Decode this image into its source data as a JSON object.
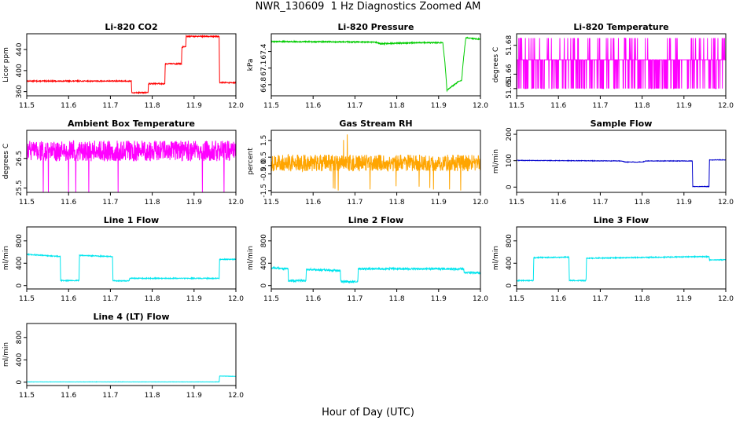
{
  "page": {
    "title": "NWR_130609  1 Hz Diagnostics Zoomed AM",
    "x_caption": "Hour of Day (UTC)"
  },
  "chart_data": [
    {
      "type": "line",
      "title": "Li-820 CO2",
      "ylabel": "Licor ppm",
      "color": "#ff0000",
      "xlim": [
        11.5,
        12.0
      ],
      "ylim": [
        352,
        470
      ],
      "xticks": [
        "11.5",
        "11.6",
        "11.7",
        "11.8",
        "11.9",
        "12.0"
      ],
      "yticks": [
        [
          360,
          "360"
        ],
        [
          400,
          "400"
        ],
        [
          440,
          "440"
        ]
      ],
      "noise": 1,
      "series": [
        {
          "x": [
            11.5,
            11.75,
            11.751,
            11.79,
            11.791,
            11.83,
            11.831,
            11.87,
            11.871,
            11.88,
            11.881,
            11.96,
            11.961,
            12.0
          ],
          "y": [
            380,
            380,
            358,
            358,
            375,
            375,
            413,
            413,
            445,
            445,
            465,
            465,
            377,
            377
          ]
        }
      ]
    },
    {
      "type": "line",
      "title": "Li-820 Pressure",
      "ylabel": "kPa",
      "color": "#00cc00",
      "xlim": [
        11.5,
        12.0
      ],
      "ylim": [
        66.6,
        67.72
      ],
      "xticks": [
        "11.5",
        "11.6",
        "11.7",
        "11.8",
        "11.9",
        "12.0"
      ],
      "yticks": [
        [
          66.8,
          "66.8"
        ],
        [
          67.1,
          "67.1"
        ],
        [
          67.4,
          "67.4"
        ]
      ],
      "noise": 0.01,
      "series": [
        {
          "x": [
            11.5,
            11.75,
            11.76,
            11.85,
            11.91,
            11.915,
            11.92,
            11.95,
            11.955,
            11.96,
            11.965,
            12.0
          ],
          "y": [
            67.58,
            67.57,
            67.54,
            67.56,
            67.56,
            67.2,
            66.7,
            66.87,
            66.88,
            67.3,
            67.65,
            67.62
          ]
        }
      ]
    },
    {
      "type": "line",
      "title": "Li-820 Temperature",
      "ylabel": "degrees C",
      "color": "#ff00ff",
      "style": "binary",
      "xlim": [
        11.5,
        12.0
      ],
      "ylim": [
        51.645,
        51.688
      ],
      "xticks": [
        "11.5",
        "11.6",
        "11.7",
        "11.8",
        "11.9",
        "12.0"
      ],
      "yticks": [
        [
          51.65,
          "51.65"
        ],
        [
          51.66,
          "51.66"
        ],
        [
          51.68,
          "51.68"
        ]
      ],
      "levels": [
        51.65,
        51.67,
        51.685
      ],
      "series": [
        {
          "x": [
            11.5,
            12.0
          ],
          "y": [
            51.67,
            51.67
          ]
        }
      ]
    },
    {
      "type": "line",
      "title": "Ambient Box Temperature",
      "ylabel": "degrees C",
      "color": "#ff00ff",
      "style": "noisy",
      "xlim": [
        11.5,
        12.0
      ],
      "ylim": [
        25.35,
        27.45
      ],
      "xticks": [
        "11.5",
        "11.6",
        "11.7",
        "11.8",
        "11.9",
        "12.0"
      ],
      "yticks": [
        [
          25.5,
          "25.5"
        ],
        [
          26.5,
          "26.5"
        ]
      ],
      "noise": 0.35,
      "spikes": [
        25.5,
        27.35
      ],
      "series": [
        {
          "x": [
            11.5,
            12.0
          ],
          "y": [
            26.75,
            26.75
          ]
        }
      ]
    },
    {
      "type": "line",
      "title": "Gas Stream RH",
      "ylabel": "percent",
      "color": "#ffa500",
      "style": "noisy",
      "xlim": [
        11.5,
        12.0
      ],
      "ylim": [
        -1.6,
        2.1
      ],
      "xticks": [
        "11.5",
        "11.6",
        "11.7",
        "11.8",
        "11.9",
        "12.0"
      ],
      "yticks": [
        [
          -1.5,
          "-1.5"
        ],
        [
          -0.5,
          "-0.5"
        ],
        [
          0,
          "0.0"
        ],
        [
          0.5,
          "0.5"
        ],
        [
          1.5,
          "1.5"
        ]
      ],
      "noise": 0.5,
      "spikes": [
        -1.5,
        1.9
      ],
      "series": [
        {
          "x": [
            11.5,
            12.0
          ],
          "y": [
            0.15,
            0.15
          ]
        }
      ]
    },
    {
      "type": "line",
      "title": "Sample Flow",
      "ylabel": "ml/min",
      "color": "#0000cc",
      "xlim": [
        11.5,
        12.0
      ],
      "ylim": [
        -20,
        215
      ],
      "xticks": [
        "11.5",
        "11.6",
        "11.7",
        "11.8",
        "11.9",
        "12.0"
      ],
      "yticks": [
        [
          0,
          "0"
        ],
        [
          100,
          "100"
        ],
        [
          200,
          "200"
        ]
      ],
      "noise": 1,
      "series": [
        {
          "x": [
            11.5,
            11.75,
            11.76,
            11.8,
            11.81,
            11.92,
            11.921,
            11.96,
            11.961,
            12.0
          ],
          "y": [
            101,
            99,
            95,
            95,
            99,
            99,
            2,
            2,
            103,
            103
          ]
        }
      ]
    },
    {
      "type": "line",
      "title": "Line 1 Flow",
      "ylabel": "ml/min",
      "color": "#00e5ee",
      "xlim": [
        11.5,
        12.0
      ],
      "ylim": [
        -60,
        1050
      ],
      "xticks": [
        "11.5",
        "11.6",
        "11.7",
        "11.8",
        "11.9",
        "12.0"
      ],
      "yticks": [
        [
          0,
          "0"
        ],
        [
          400,
          "400"
        ],
        [
          800,
          "800"
        ]
      ],
      "noise": 8,
      "series": [
        {
          "x": [
            11.5,
            11.54,
            11.58,
            11.581,
            11.625,
            11.626,
            11.705,
            11.706,
            11.745,
            11.746,
            11.96,
            11.961,
            12.0
          ],
          "y": [
            560,
            540,
            520,
            90,
            90,
            540,
            520,
            85,
            85,
            130,
            130,
            470,
            470
          ]
        }
      ]
    },
    {
      "type": "line",
      "title": "Line 2 Flow",
      "ylabel": "ml/min",
      "color": "#00e5ee",
      "xlim": [
        11.5,
        12.0
      ],
      "ylim": [
        -60,
        1050
      ],
      "xticks": [
        "11.5",
        "11.6",
        "11.7",
        "11.8",
        "11.9",
        "12.0"
      ],
      "yticks": [
        [
          0,
          "0"
        ],
        [
          400,
          "400"
        ],
        [
          800,
          "800"
        ]
      ],
      "noise": 18,
      "series": [
        {
          "x": [
            11.5,
            11.54,
            11.541,
            11.583,
            11.584,
            11.665,
            11.666,
            11.707,
            11.708,
            11.96,
            11.961,
            12.0
          ],
          "y": [
            320,
            300,
            90,
            90,
            290,
            270,
            70,
            70,
            300,
            300,
            230,
            230
          ]
        }
      ]
    },
    {
      "type": "line",
      "title": "Line 3 Flow",
      "ylabel": "ml/min",
      "color": "#00e5ee",
      "xlim": [
        11.5,
        12.0
      ],
      "ylim": [
        -60,
        1050
      ],
      "xticks": [
        "11.5",
        "11.6",
        "11.7",
        "11.8",
        "11.9",
        "12.0"
      ],
      "yticks": [
        [
          0,
          "0"
        ],
        [
          400,
          "400"
        ],
        [
          800,
          "800"
        ]
      ],
      "noise": 8,
      "series": [
        {
          "x": [
            11.5,
            11.54,
            11.541,
            11.625,
            11.626,
            11.666,
            11.667,
            11.96,
            11.961,
            12.0
          ],
          "y": [
            90,
            90,
            500,
            510,
            90,
            90,
            490,
            520,
            460,
            460
          ]
        }
      ]
    },
    {
      "type": "line",
      "title": "Line 4 (LT) Flow",
      "ylabel": "ml/min",
      "color": "#00e5ee",
      "xlim": [
        11.5,
        12.0
      ],
      "ylim": [
        -60,
        1050
      ],
      "xticks": [
        "11.5",
        "11.6",
        "11.7",
        "11.8",
        "11.9",
        "12.0"
      ],
      "yticks": [
        [
          0,
          "0"
        ],
        [
          400,
          "400"
        ],
        [
          800,
          "800"
        ]
      ],
      "noise": 2,
      "series": [
        {
          "x": [
            11.5,
            11.96,
            11.961,
            12.0
          ],
          "y": [
            5,
            5,
            110,
            105
          ]
        }
      ]
    }
  ]
}
